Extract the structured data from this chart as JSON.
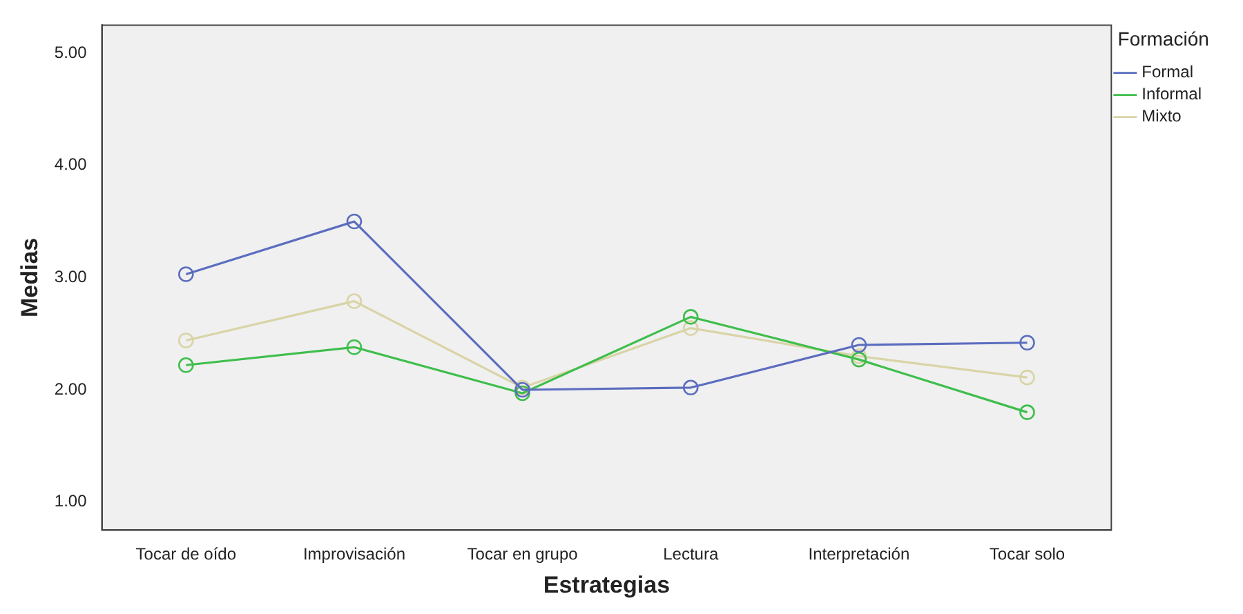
{
  "chart_data": {
    "type": "line",
    "xlabel": "Estrategias",
    "ylabel": "Medias",
    "legend_title": "Formación",
    "legend": "top right",
    "grid": false,
    "marker": "circle",
    "line_style": "solid",
    "categories": [
      "Tocar de oído",
      "Improvisación",
      "Tocar en grupo",
      "Lectura",
      "Interpretación",
      "Tocar solo"
    ],
    "ylim": [
      0.75,
      5.25
    ],
    "yticks": [
      {
        "value": 1,
        "label": "1.00"
      },
      {
        "value": 2,
        "label": "2.00"
      },
      {
        "value": 3,
        "label": "3.00"
      },
      {
        "value": 4,
        "label": "4.00"
      },
      {
        "value": 5,
        "label": "5.00"
      }
    ],
    "series": [
      {
        "name": "Formal",
        "color": "#5b6dbf",
        "values": [
          3.03,
          3.5,
          2.0,
          2.02,
          2.4,
          2.42
        ]
      },
      {
        "name": "Informal",
        "color": "#3fbe4c",
        "values": [
          2.22,
          2.38,
          1.97,
          2.65,
          2.27,
          1.8
        ]
      },
      {
        "name": "Mixto",
        "color": "#d9d4a6",
        "values": [
          2.44,
          2.79,
          2.02,
          2.55,
          2.3,
          2.11
        ]
      }
    ]
  }
}
